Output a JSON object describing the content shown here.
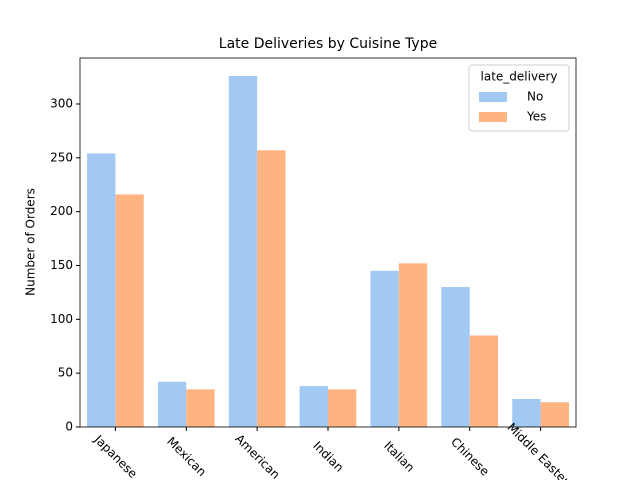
{
  "chart_data": {
    "type": "bar",
    "title": "Late Deliveries by Cuisine Type",
    "y_label": "Number of Orders",
    "categories": [
      "Japanese",
      "Mexican",
      "American",
      "Indian",
      "Italian",
      "Chinese",
      "Middle Eastern"
    ],
    "legend_title": "late_delivery",
    "legend": "upper right",
    "series": [
      {
        "name": "No",
        "color": "#a1c9f4",
        "values": [
          254,
          42,
          326,
          38,
          145,
          130,
          26
        ]
      },
      {
        "name": "Yes",
        "color": "#ffb482",
        "values": [
          216,
          35,
          257,
          35,
          152,
          85,
          23
        ]
      }
    ],
    "ylim": [
      0,
      342.7
    ],
    "yticks": [
      0,
      50,
      100,
      150,
      200,
      250,
      300
    ]
  }
}
